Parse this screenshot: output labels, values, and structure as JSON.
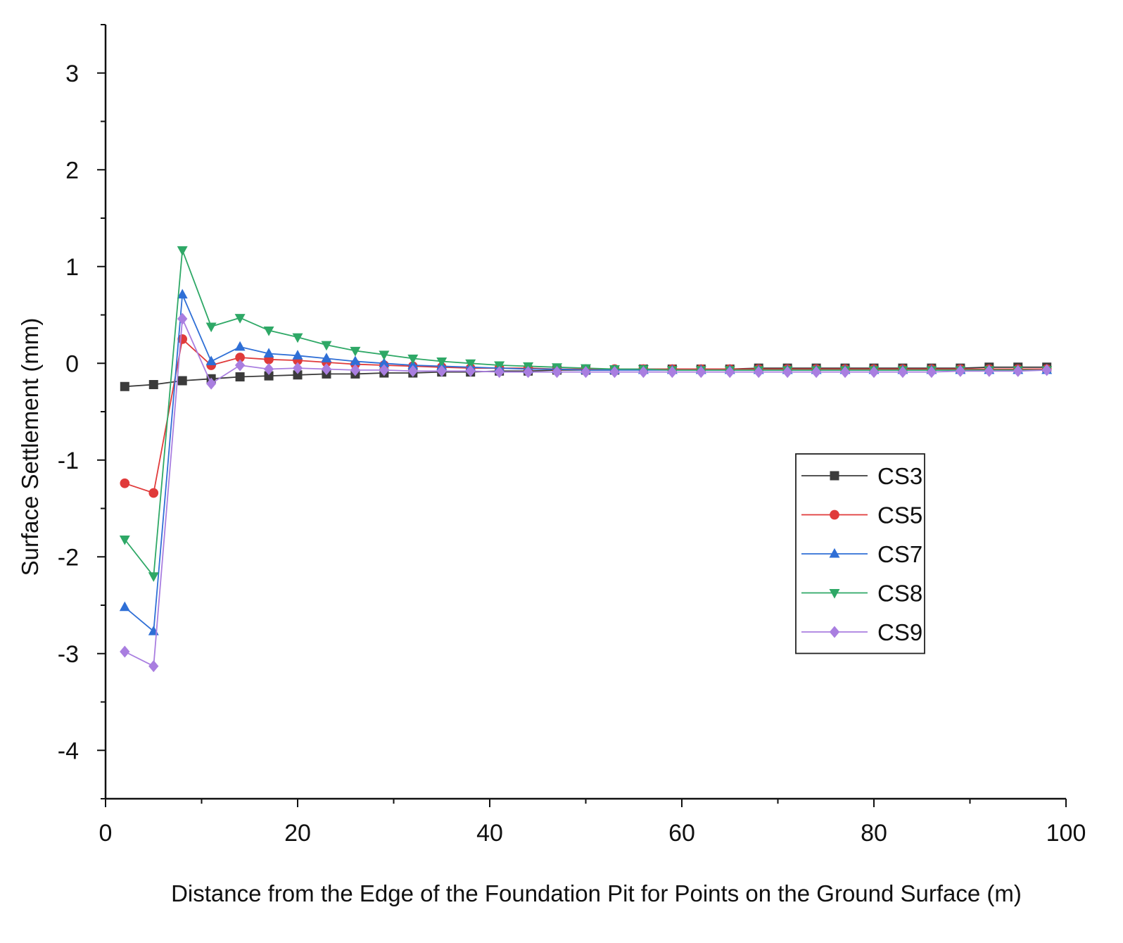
{
  "chart_data": {
    "type": "line",
    "title": "",
    "xlabel": "Distance from the Edge of the Foundation Pit for Points on the Ground Surface (m)",
    "ylabel": "Surface Settlement (mm)",
    "xlim": [
      0,
      100
    ],
    "ylim": [
      -4.5,
      3.5
    ],
    "xticks": [
      0,
      20,
      40,
      60,
      80,
      100
    ],
    "yticks": [
      -4,
      -3,
      -2,
      -1,
      0,
      1,
      2,
      3
    ],
    "xtick_labels": [
      "0",
      "20",
      "40",
      "60",
      "80",
      "100"
    ],
    "ytick_labels": [
      "-4",
      "-3",
      "-2",
      "-1",
      "0",
      "1",
      "2",
      "3"
    ],
    "grid": false,
    "legend_position": "center-right",
    "x": [
      2,
      5,
      8,
      11,
      14,
      17,
      20,
      23,
      26,
      29,
      32,
      35,
      38,
      41,
      44,
      47,
      50,
      53,
      56,
      59,
      62,
      65,
      68,
      71,
      74,
      77,
      80,
      83,
      86,
      89,
      92,
      95,
      98
    ],
    "series": [
      {
        "name": "CS3",
        "color": "#3b3b3b",
        "marker": "square",
        "values": [
          -0.24,
          -0.22,
          -0.18,
          -0.16,
          -0.14,
          -0.13,
          -0.12,
          -0.11,
          -0.11,
          -0.1,
          -0.1,
          -0.09,
          -0.09,
          -0.08,
          -0.08,
          -0.07,
          -0.07,
          -0.07,
          -0.06,
          -0.06,
          -0.06,
          -0.06,
          -0.05,
          -0.05,
          -0.05,
          -0.05,
          -0.05,
          -0.05,
          -0.05,
          -0.05,
          -0.04,
          -0.04,
          -0.04
        ]
      },
      {
        "name": "CS5",
        "color": "#e03a3a",
        "marker": "circle",
        "values": [
          -1.24,
          -1.34,
          0.25,
          -0.02,
          0.06,
          0.04,
          0.03,
          0.01,
          -0.01,
          -0.02,
          -0.03,
          -0.04,
          -0.05,
          -0.05,
          -0.05,
          -0.06,
          -0.06,
          -0.06,
          -0.06,
          -0.06,
          -0.06,
          -0.06,
          -0.06,
          -0.06,
          -0.06,
          -0.06,
          -0.06,
          -0.06,
          -0.06,
          -0.06,
          -0.06,
          -0.06,
          -0.06
        ]
      },
      {
        "name": "CS7",
        "color": "#2f6fd6",
        "marker": "triangle-up",
        "values": [
          -2.52,
          -2.77,
          0.71,
          0.02,
          0.17,
          0.1,
          0.08,
          0.05,
          0.02,
          0.0,
          -0.02,
          -0.03,
          -0.04,
          -0.05,
          -0.06,
          -0.06,
          -0.07,
          -0.07,
          -0.07,
          -0.07,
          -0.07,
          -0.07,
          -0.07,
          -0.07,
          -0.07,
          -0.07,
          -0.07,
          -0.07,
          -0.07,
          -0.07,
          -0.07,
          -0.07,
          -0.07
        ]
      },
      {
        "name": "CS8",
        "color": "#2ea866",
        "marker": "triangle-down",
        "values": [
          -1.82,
          -2.2,
          1.17,
          0.38,
          0.47,
          0.34,
          0.27,
          0.19,
          0.13,
          0.09,
          0.05,
          0.02,
          0.0,
          -0.02,
          -0.03,
          -0.04,
          -0.05,
          -0.06,
          -0.06,
          -0.07,
          -0.07,
          -0.07,
          -0.07,
          -0.07,
          -0.07,
          -0.07,
          -0.07,
          -0.07,
          -0.07,
          -0.07,
          -0.07,
          -0.07,
          -0.07
        ]
      },
      {
        "name": "CS9",
        "color": "#a97ee0",
        "marker": "diamond",
        "values": [
          -2.98,
          -3.13,
          0.46,
          -0.21,
          -0.02,
          -0.06,
          -0.05,
          -0.06,
          -0.07,
          -0.07,
          -0.08,
          -0.08,
          -0.08,
          -0.09,
          -0.09,
          -0.09,
          -0.09,
          -0.09,
          -0.09,
          -0.09,
          -0.09,
          -0.09,
          -0.09,
          -0.09,
          -0.09,
          -0.09,
          -0.09,
          -0.09,
          -0.09,
          -0.08,
          -0.08,
          -0.08,
          -0.07
        ]
      }
    ]
  }
}
